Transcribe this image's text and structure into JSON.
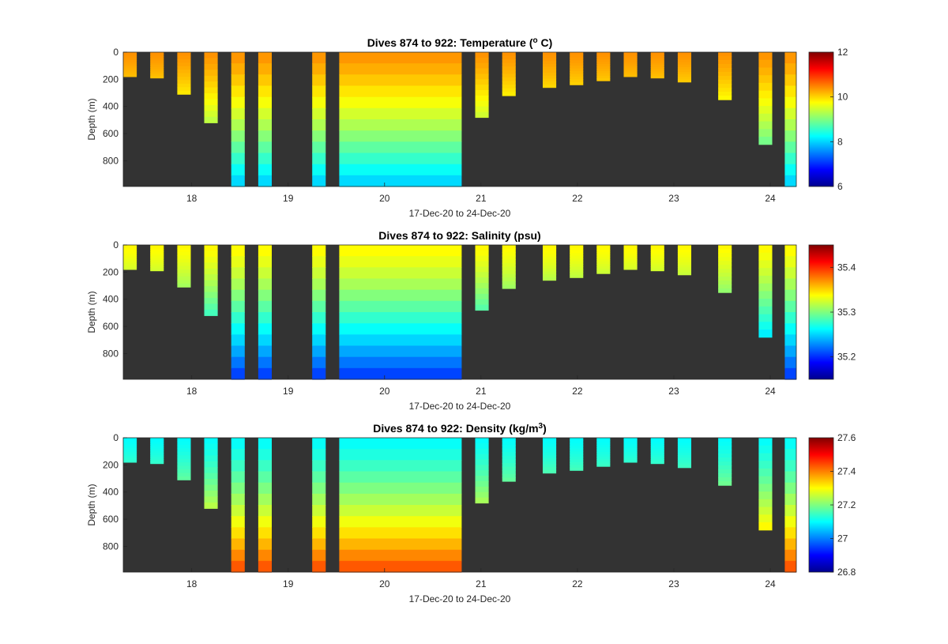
{
  "chart_data": [
    {
      "type": "heatmap",
      "title": "Dives 874 to 922: Temperature (",
      "title_sup": "o",
      "title_end": " C)",
      "xlabel": "17-Dec-20 to 24-Dec-20",
      "ylabel": "Depth (m)",
      "xlim": [
        17.29,
        24.27
      ],
      "ylim": [
        990,
        0
      ],
      "xticks": [
        "18",
        "19",
        "20",
        "21",
        "22",
        "23",
        "24"
      ],
      "yticks": [
        "0",
        "200",
        "400",
        "600",
        "800"
      ],
      "colorbar": {
        "range": [
          6,
          12
        ],
        "ticks": [
          "6",
          "8",
          "10",
          "12"
        ]
      },
      "surface_value": 10.4,
      "deep_value": 7.9,
      "background": "#333333"
    },
    {
      "type": "heatmap",
      "title": "Dives 874 to 922: Salinity (psu)",
      "title_sup": "",
      "title_end": "",
      "xlabel": "17-Dec-20 to 24-Dec-20",
      "ylabel": "Depth (m)",
      "xlim": [
        17.29,
        24.27
      ],
      "ylim": [
        990,
        0
      ],
      "xticks": [
        "18",
        "19",
        "20",
        "21",
        "22",
        "23",
        "24"
      ],
      "yticks": [
        "0",
        "200",
        "400",
        "600",
        "800"
      ],
      "colorbar": {
        "range": [
          35.15,
          35.45
        ],
        "ticks": [
          "35.2",
          "35.3",
          "35.4"
        ]
      },
      "surface_value": 35.34,
      "deep_value": 35.2,
      "background": "#333333"
    },
    {
      "type": "heatmap",
      "title": "Dives 874 to 922: Density (kg/m",
      "title_sup": "3",
      "title_end": ")",
      "xlabel": "17-Dec-20 to 24-Dec-20",
      "ylabel": "Depth (m)",
      "xlim": [
        17.29,
        24.27
      ],
      "ylim": [
        990,
        0
      ],
      "xticks": [
        "18",
        "19",
        "20",
        "21",
        "22",
        "23",
        "24"
      ],
      "yticks": [
        "0",
        "200",
        "400",
        "600",
        "800"
      ],
      "colorbar": {
        "range": [
          26.8,
          27.6
        ],
        "ticks": [
          "26.8",
          "27",
          "27.2",
          "27.4",
          "27.6"
        ]
      },
      "surface_value": 27.1,
      "deep_value": 27.45,
      "background": "#333333"
    }
  ],
  "dives": [
    {
      "start": 17.29,
      "end": 17.43,
      "max_depth": 180
    },
    {
      "start": 17.57,
      "end": 17.71,
      "max_depth": 190
    },
    {
      "start": 17.85,
      "end": 17.99,
      "max_depth": 310
    },
    {
      "start": 18.13,
      "end": 18.27,
      "max_depth": 520
    },
    {
      "start": 18.41,
      "end": 18.55,
      "max_depth": 990
    },
    {
      "start": 18.69,
      "end": 18.83,
      "max_depth": 990
    },
    {
      "start": 19.25,
      "end": 19.39,
      "max_depth": 990
    },
    {
      "start": 19.53,
      "end": 20.8,
      "max_depth": 990
    },
    {
      "start": 20.94,
      "end": 21.08,
      "max_depth": 480
    },
    {
      "start": 21.22,
      "end": 21.36,
      "max_depth": 320
    },
    {
      "start": 21.64,
      "end": 21.78,
      "max_depth": 260
    },
    {
      "start": 21.92,
      "end": 22.06,
      "max_depth": 240
    },
    {
      "start": 22.2,
      "end": 22.34,
      "max_depth": 210
    },
    {
      "start": 22.48,
      "end": 22.62,
      "max_depth": 180
    },
    {
      "start": 22.76,
      "end": 22.9,
      "max_depth": 190
    },
    {
      "start": 23.04,
      "end": 23.18,
      "max_depth": 220
    },
    {
      "start": 23.46,
      "end": 23.6,
      "max_depth": 350
    },
    {
      "start": 23.88,
      "end": 24.02,
      "max_depth": 680
    },
    {
      "start": 24.15,
      "end": 24.27,
      "max_depth": 990
    }
  ]
}
